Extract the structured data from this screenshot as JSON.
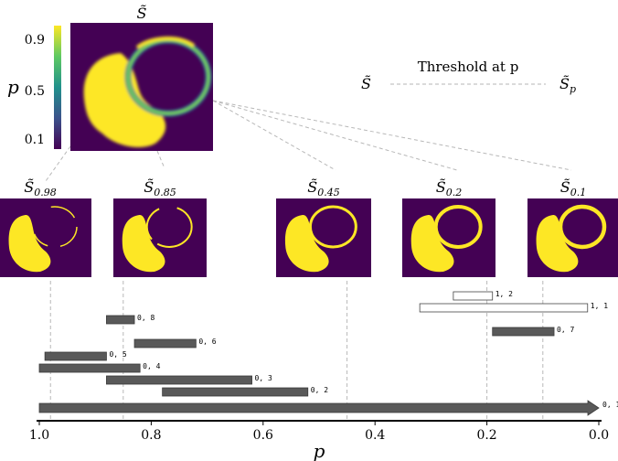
{
  "source": {
    "symbol": "S̃",
    "colorbar_ticks": [
      "0.9",
      "0.5",
      "0.1"
    ],
    "colorbar_label": "p"
  },
  "legend": {
    "from": "S̃",
    "text": "Threshold at p",
    "to_base": "S̃",
    "to_sub": "p"
  },
  "thresholds": [
    {
      "base": "S̃",
      "sub": "0.98",
      "p": 0.98
    },
    {
      "base": "S̃",
      "sub": "0.85",
      "p": 0.85
    },
    {
      "base": "S̃",
      "sub": "0.45",
      "p": 0.45
    },
    {
      "base": "S̃",
      "sub": "0.2",
      "p": 0.2
    },
    {
      "base": "S̃",
      "sub": "0.1",
      "p": 0.1
    }
  ],
  "axis": {
    "label": "p",
    "range": [
      1.0,
      0.0
    ],
    "ticks": [
      {
        "value": 1.0,
        "label": "1.0"
      },
      {
        "value": 0.8,
        "label": "0.8"
      },
      {
        "value": 0.6,
        "label": "0.6"
      },
      {
        "value": 0.4,
        "label": "0.4"
      },
      {
        "value": 0.2,
        "label": "0.2"
      },
      {
        "value": 0.0,
        "label": "0.0"
      }
    ]
  },
  "intervals": [
    {
      "label": "1, 2",
      "start": 0.26,
      "end": 0.19,
      "filled": false
    },
    {
      "label": "1, 1",
      "start": 0.32,
      "end": 0.02,
      "filled": false
    },
    {
      "label": "0, 8",
      "start": 0.88,
      "end": 0.83,
      "filled": true
    },
    {
      "label": "0, 7",
      "start": 0.19,
      "end": 0.08,
      "filled": true
    },
    {
      "label": "0, 6",
      "start": 0.83,
      "end": 0.72,
      "filled": true
    },
    {
      "label": "0, 5",
      "start": 0.99,
      "end": 0.88,
      "filled": true
    },
    {
      "label": "0, 4",
      "start": 1.0,
      "end": 0.82,
      "filled": true
    },
    {
      "label": "0, 3",
      "start": 0.88,
      "end": 0.62,
      "filled": true
    },
    {
      "label": "0, 2",
      "start": 0.78,
      "end": 0.52,
      "filled": true
    },
    {
      "label": "0, 1",
      "start": 1.0,
      "end": 0.0,
      "filled": true,
      "arrow": true
    }
  ],
  "colors": {
    "background": "#440154",
    "foreground": "#fde725",
    "bar_fill": "#595959",
    "bar_stroke": "#3a3a3a",
    "dash": "#b5b5b5"
  }
}
